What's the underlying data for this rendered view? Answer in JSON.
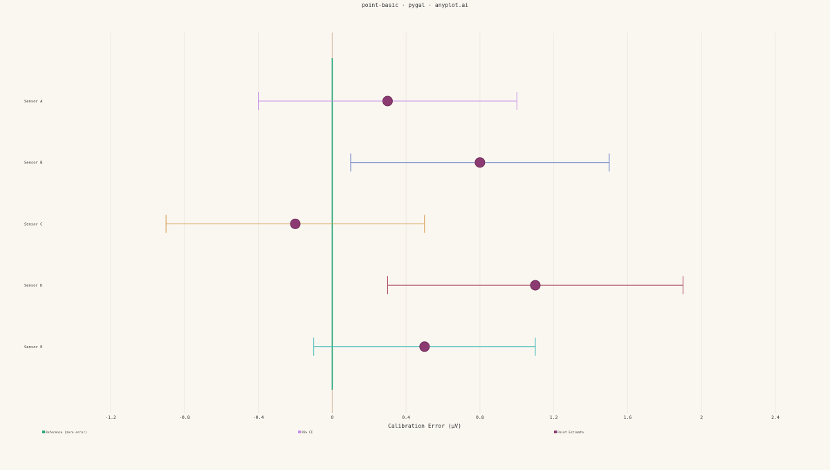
{
  "chart_data": {
    "type": "scatter",
    "title": "point-basic · pygal · anyplot.ai",
    "xlabel": "Calibration Error (µV)",
    "ylabel": "",
    "xlim": [
      -1.2,
      2.4
    ],
    "x_ticks": [
      -1.2,
      -0.8,
      -0.4,
      0,
      0.4,
      0.8,
      1.2,
      1.6,
      2,
      2.4
    ],
    "grid": true,
    "legend_position": "bottom",
    "reference_line": {
      "x": 0,
      "color": "#2aa87a"
    },
    "categories": [
      "Sensor A",
      "Sensor B",
      "Sensor C",
      "Sensor D",
      "Sensor E"
    ],
    "points": [
      {
        "label": "Sensor A",
        "estimate": 0.3,
        "ci_low": -0.4,
        "ci_high": 1.0,
        "ci_color": "#c58fe6"
      },
      {
        "label": "Sensor B",
        "estimate": 0.8,
        "ci_low": 0.1,
        "ci_high": 1.5,
        "ci_color": "#5b76c2"
      },
      {
        "label": "Sensor C",
        "estimate": -0.2,
        "ci_low": -0.9,
        "ci_high": 0.5,
        "ci_color": "#d09a4a"
      },
      {
        "label": "Sensor D",
        "estimate": 1.1,
        "ci_low": 0.3,
        "ci_high": 1.9,
        "ci_color": "#a5374f"
      },
      {
        "label": "Sensor E",
        "estimate": 0.5,
        "ci_low": -0.1,
        "ci_high": 1.1,
        "ci_color": "#3fb7b3"
      }
    ],
    "point_color": "#8c3b72",
    "legend": [
      {
        "label": "Reference (zero error)",
        "color": "#2aa87a"
      },
      {
        "label": "95% CI",
        "color": "#c58fe6"
      },
      {
        "label": "Point Estimate",
        "color": "#8c3b72"
      }
    ]
  }
}
